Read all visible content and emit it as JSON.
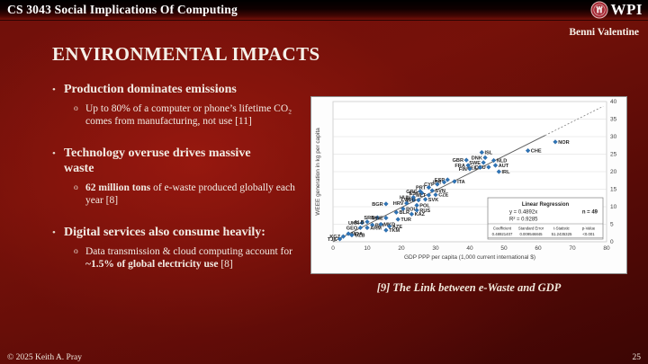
{
  "header": {
    "course": "CS 3043 Social Implications Of Computing",
    "logo_text": "WPI",
    "author": "Benni Valentine"
  },
  "title": "ENVIRONMENTAL IMPACTS",
  "bullets": [
    {
      "title": "Production dominates emissions",
      "subs": [
        [
          {
            "t": "Up to 80% of a computer or phone’s lifetime CO₂ comes from manufacturing, not use [11]",
            "b": false
          }
        ]
      ]
    },
    {
      "title": "Technology overuse drives massive waste",
      "subs": [
        [
          {
            "t": "62 million tons",
            "b": true
          },
          {
            "t": " of e-waste produced globally each year [8]",
            "b": false
          }
        ]
      ]
    },
    {
      "title": "Digital services also consume heavily:",
      "subs": [
        [
          {
            "t": "Data transmission & cloud computing account for ",
            "b": false
          },
          {
            "t": "~1.5% of global electricity use",
            "b": true
          },
          {
            "t": " [8]",
            "b": false
          }
        ]
      ]
    }
  ],
  "figure": {
    "caption": "[9] The Link between e-Waste and GDP"
  },
  "footer": {
    "copyright": "© 2025 Keith A. Pray",
    "page": "25"
  },
  "chart_data": {
    "type": "scatter",
    "title": "",
    "xlabel": "GDP PPP per capita (1,000 current international $)",
    "ylabel": "WEEE generation in kg per capita",
    "xlim": [
      0,
      80
    ],
    "ylim": [
      0,
      40
    ],
    "xticks": [
      0,
      10,
      20,
      30,
      40,
      50,
      60,
      70,
      80
    ],
    "yticks": [
      0,
      5,
      10,
      15,
      20,
      25,
      30,
      35,
      40
    ],
    "grid": "horizontal",
    "legend_position": "none",
    "point_color": "#2E75B6",
    "regression": {
      "title": "Linear Regression",
      "equation": "y = 0.4892x",
      "n": "n = 49",
      "r2": "R² = 0.9285",
      "slope": 0.4892,
      "line_solid_to": 62,
      "table_headers": [
        "Coefficient",
        "Standard Error",
        "t-Statistic",
        "p-Value"
      ],
      "table_values": [
        "0.48921407",
        "0.009546845",
        "51.2435325",
        "<0.001"
      ]
    },
    "points": [
      {
        "code": "NOR",
        "x": 65,
        "y": 28.5,
        "side": "r"
      },
      {
        "code": "CHE",
        "x": 57,
        "y": 26,
        "side": "r"
      },
      {
        "code": "ISL",
        "x": 43.5,
        "y": 25.5,
        "side": "r"
      },
      {
        "code": "DNK",
        "x": 44.5,
        "y": 24,
        "side": "l"
      },
      {
        "code": "SWE",
        "x": 44,
        "y": 22.6,
        "side": "l"
      },
      {
        "code": "NLD",
        "x": 47,
        "y": 23.2,
        "side": "r"
      },
      {
        "code": "AUT",
        "x": 47.5,
        "y": 21.8,
        "side": "r"
      },
      {
        "code": "DEU",
        "x": 45.5,
        "y": 21.3,
        "side": "l"
      },
      {
        "code": "BEL",
        "x": 43,
        "y": 21.2,
        "side": "l"
      },
      {
        "code": "IRL",
        "x": 48.5,
        "y": 20,
        "side": "r"
      },
      {
        "code": "GBR",
        "x": 39,
        "y": 23.3,
        "side": "l"
      },
      {
        "code": "FRA",
        "x": 39.5,
        "y": 21.8,
        "side": "l"
      },
      {
        "code": "FIN",
        "x": 40,
        "y": 20.8,
        "side": "l"
      },
      {
        "code": "ESP",
        "x": 33.5,
        "y": 17.7,
        "side": "l"
      },
      {
        "code": "ITA",
        "x": 35.5,
        "y": 17.2,
        "side": "r"
      },
      {
        "code": "ISR",
        "x": 32.5,
        "y": 17,
        "side": "l"
      },
      {
        "code": "CYP",
        "x": 30.5,
        "y": 16.4,
        "side": "l"
      },
      {
        "code": "PRT",
        "x": 28,
        "y": 15.5,
        "side": "l"
      },
      {
        "code": "GRC",
        "x": 25.5,
        "y": 14.4,
        "side": "l"
      },
      {
        "code": "EST",
        "x": 26,
        "y": 13.9,
        "side": "l"
      },
      {
        "code": "SVN",
        "x": 29,
        "y": 14.6,
        "side": "r"
      },
      {
        "code": "MLT",
        "x": 28,
        "y": 13.3,
        "side": "l"
      },
      {
        "code": "CZE",
        "x": 30,
        "y": 13.4,
        "side": "r"
      },
      {
        "code": "SVK",
        "x": 27,
        "y": 12.1,
        "side": "r"
      },
      {
        "code": "HUN",
        "x": 23.5,
        "y": 12.7,
        "side": "l"
      },
      {
        "code": "LVA",
        "x": 23.5,
        "y": 12,
        "side": "l"
      },
      {
        "code": "LTU",
        "x": 25,
        "y": 11.9,
        "side": "l"
      },
      {
        "code": "HRV",
        "x": 21.5,
        "y": 11,
        "side": "l"
      },
      {
        "code": "BGR",
        "x": 15.5,
        "y": 10.8,
        "side": "l"
      },
      {
        "code": "POL",
        "x": 24.5,
        "y": 10.4,
        "side": "r"
      },
      {
        "code": "ROU",
        "x": 20.5,
        "y": 9.4,
        "side": "r"
      },
      {
        "code": "RUS",
        "x": 24.5,
        "y": 9,
        "side": "r"
      },
      {
        "code": "BLR",
        "x": 18.5,
        "y": 8.4,
        "side": "r"
      },
      {
        "code": "KAZ",
        "x": 23,
        "y": 7.9,
        "side": "r"
      },
      {
        "code": "TUR",
        "x": 19,
        "y": 6.4,
        "side": "r"
      },
      {
        "code": "SRB",
        "x": 13,
        "y": 6.9,
        "side": "l"
      },
      {
        "code": "MNE",
        "x": 15.5,
        "y": 6.8,
        "side": "l"
      },
      {
        "code": "UKR",
        "x": 8.5,
        "y": 5.4,
        "side": "l"
      },
      {
        "code": "ALB",
        "x": 10,
        "y": 5.7,
        "side": "l"
      },
      {
        "code": "BIH",
        "x": 11.5,
        "y": 4.8,
        "side": "r"
      },
      {
        "code": "MKD",
        "x": 14,
        "y": 5,
        "side": "r"
      },
      {
        "code": "GEO",
        "x": 8,
        "y": 4,
        "side": "l"
      },
      {
        "code": "ARM",
        "x": 10,
        "y": 4,
        "side": "r"
      },
      {
        "code": "AZE",
        "x": 16.5,
        "y": 4.4,
        "side": "r"
      },
      {
        "code": "TKM",
        "x": 15.5,
        "y": 3.3,
        "side": "r"
      },
      {
        "code": "KGZ",
        "x": 3,
        "y": 1.5,
        "side": "l"
      },
      {
        "code": "MDA",
        "x": 4.5,
        "y": 2.3,
        "side": "r"
      },
      {
        "code": "UZB",
        "x": 5.5,
        "y": 1.9,
        "side": "r"
      },
      {
        "code": "TJK",
        "x": 2,
        "y": 0.8,
        "side": "l"
      }
    ]
  }
}
